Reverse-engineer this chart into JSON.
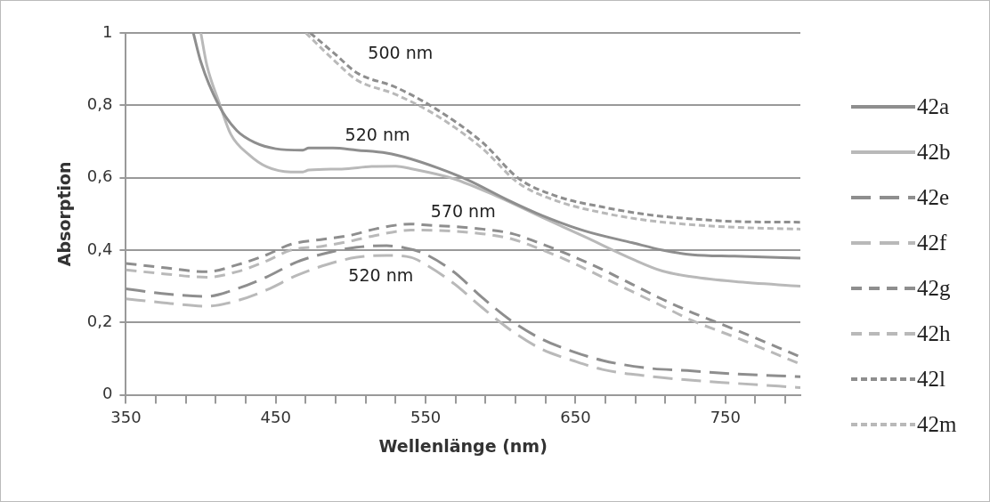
{
  "chart_data": {
    "type": "line",
    "xlabel": "Wellenlänge (nm)",
    "ylabel": "Absorption",
    "xlim": [
      350,
      800
    ],
    "xticks": [
      350,
      {
        "value": 370,
        "label": null
      },
      {
        "value": 390,
        "label": null
      },
      {
        "value": 410,
        "label": null
      },
      {
        "value": 430,
        "label": null
      },
      450,
      {
        "value": 470,
        "label": null
      },
      {
        "value": 490,
        "label": null
      },
      {
        "value": 510,
        "label": null
      },
      {
        "value": 530,
        "label": null
      },
      550,
      {
        "value": 570,
        "label": null
      },
      {
        "value": 590,
        "label": null
      },
      {
        "value": 610,
        "label": null
      },
      {
        "value": 630,
        "label": null
      },
      650,
      {
        "value": 670,
        "label": null
      },
      {
        "value": 690,
        "label": null
      },
      {
        "value": 710,
        "label": null
      },
      {
        "value": 730,
        "label": null
      },
      750,
      {
        "value": 770,
        "label": null
      },
      {
        "value": 790,
        "label": null
      }
    ],
    "ylim": [
      0,
      1
    ],
    "yticks": [
      0,
      {
        "value": 0.2,
        "label": "0,2"
      },
      {
        "value": 0.4,
        "label": "0,4"
      },
      {
        "value": 0.6,
        "label": "0,6"
      },
      {
        "value": 0.8,
        "label": "0,8"
      },
      1
    ],
    "grid": "y",
    "legend": "right",
    "marker": "none",
    "series": [
      {
        "name": "42a",
        "color": "#8e8e8e",
        "line_style": "solid",
        "x": [
          395,
          400,
          412,
          424,
          436,
          450,
          468,
          472,
          488,
          504,
          524,
          540,
          558,
          578,
          604,
          628,
          656,
          688,
          708,
          728,
          756,
          800
        ],
        "values": [
          1.0,
          0.92,
          0.8,
          0.73,
          0.697,
          0.68,
          0.676,
          0.682,
          0.682,
          0.676,
          0.668,
          0.652,
          0.627,
          0.594,
          0.54,
          0.495,
          0.453,
          0.42,
          0.4,
          0.387,
          0.383,
          0.378
        ]
      },
      {
        "name": "42b",
        "color": "#b9b9b9",
        "line_style": "solid",
        "x": [
          400,
          404,
          412,
          420,
          432,
          444,
          460,
          468,
          472,
          494,
          514,
          530,
          540,
          568,
          598,
          628,
          656,
          688,
          708,
          728,
          756,
          800
        ],
        "values": [
          1.0,
          0.911,
          0.81,
          0.72,
          0.664,
          0.63,
          0.616,
          0.616,
          0.621,
          0.624,
          0.631,
          0.632,
          0.625,
          0.598,
          0.548,
          0.49,
          0.437,
          0.375,
          0.342,
          0.326,
          0.313,
          0.3
        ]
      },
      {
        "name": "42e",
        "color": "#8e8e8e",
        "line_style": "longdash",
        "x": [
          350,
          374,
          404,
          424,
          444,
          464,
          484,
          504,
          524,
          536,
          548,
          568,
          588,
          608,
          628,
          648,
          668,
          698,
          728,
          756,
          800
        ],
        "values": [
          0.293,
          0.28,
          0.272,
          0.293,
          0.326,
          0.367,
          0.392,
          0.408,
          0.412,
          0.406,
          0.392,
          0.342,
          0.268,
          0.202,
          0.153,
          0.12,
          0.095,
          0.074,
          0.066,
          0.058,
          0.05
        ]
      },
      {
        "name": "42f",
        "color": "#b9b9b9",
        "line_style": "longdash",
        "x": [
          350,
          374,
          404,
          424,
          444,
          464,
          484,
          504,
          524,
          540,
          548,
          568,
          588,
          608,
          628,
          648,
          668,
          698,
          728,
          756,
          800
        ],
        "values": [
          0.265,
          0.255,
          0.245,
          0.26,
          0.29,
          0.33,
          0.36,
          0.38,
          0.385,
          0.38,
          0.365,
          0.31,
          0.24,
          0.175,
          0.125,
          0.095,
          0.07,
          0.052,
          0.04,
          0.032,
          0.02
        ]
      },
      {
        "name": "42g",
        "color": "#8e8e8e",
        "line_style": "dashed",
        "x": [
          350,
          374,
          404,
          424,
          444,
          460,
          480,
          500,
          516,
          540,
          548,
          588,
          608,
          628,
          648,
          668,
          688,
          708,
          728,
          756,
          800
        ],
        "values": [
          0.363,
          0.352,
          0.34,
          0.359,
          0.387,
          0.416,
          0.429,
          0.441,
          0.458,
          0.472,
          0.47,
          0.458,
          0.445,
          0.416,
          0.383,
          0.346,
          0.305,
          0.264,
          0.227,
          0.181,
          0.105
        ]
      },
      {
        "name": "42h",
        "color": "#b9b9b9",
        "line_style": "dashed",
        "x": [
          350,
          374,
          404,
          424,
          444,
          460,
          480,
          500,
          516,
          540,
          548,
          588,
          608,
          628,
          648,
          668,
          688,
          708,
          728,
          756,
          800
        ],
        "values": [
          0.345,
          0.335,
          0.325,
          0.34,
          0.37,
          0.4,
          0.41,
          0.425,
          0.44,
          0.455,
          0.455,
          0.445,
          0.43,
          0.4,
          0.365,
          0.325,
          0.285,
          0.245,
          0.205,
          0.16,
          0.085
        ]
      },
      {
        "name": "42l",
        "color": "#8e8e8e",
        "line_style": "dotted",
        "x": [
          473,
          490,
          504,
          530,
          558,
          588,
          612,
          638,
          668,
          698,
          728,
          756,
          800
        ],
        "values": [
          1.0,
          0.94,
          0.89,
          0.85,
          0.787,
          0.697,
          0.598,
          0.548,
          0.519,
          0.498,
          0.486,
          0.479,
          0.477
        ]
      },
      {
        "name": "42m",
        "color": "#b9b9b9",
        "line_style": "dotted",
        "x": [
          470,
          490,
          504,
          530,
          558,
          588,
          612,
          638,
          668,
          698,
          728,
          756,
          800
        ],
        "values": [
          1.0,
          0.92,
          0.87,
          0.83,
          0.77,
          0.68,
          0.585,
          0.535,
          0.503,
          0.482,
          0.47,
          0.463,
          0.458
        ]
      }
    ],
    "annotations": [
      "500 nm",
      "520 nm",
      "570 nm",
      "520 nm"
    ]
  }
}
